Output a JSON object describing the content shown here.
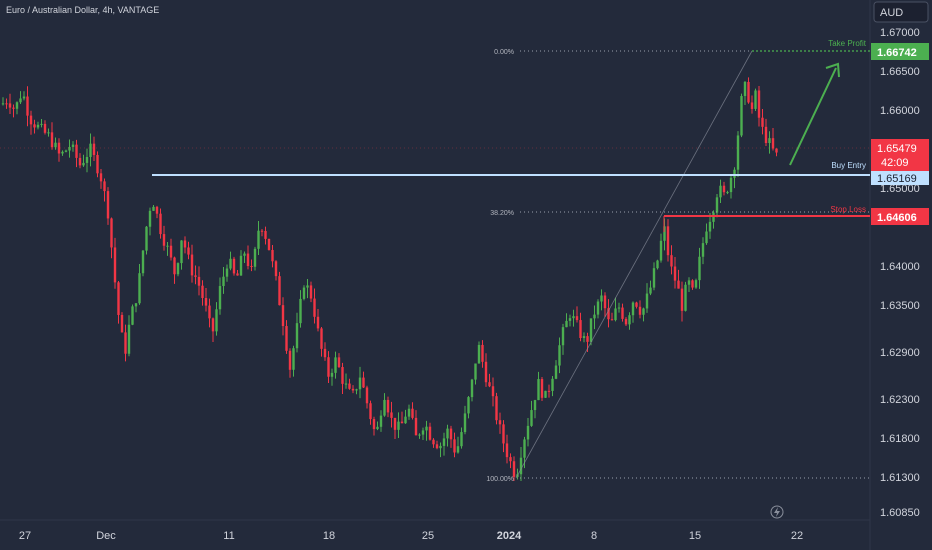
{
  "header": {
    "symbol_title": "Euro / Australian Dollar, 4h, VANTAGE"
  },
  "price_axis": {
    "currency_badge": "AUD",
    "ticks": [
      "1.67000",
      "1.66500",
      "1.66000",
      "1.65000",
      "1.64000",
      "1.63500",
      "1.62900",
      "1.62300",
      "1.61800",
      "1.61300",
      "1.60850"
    ],
    "tick_values": [
      1.67,
      1.665,
      1.66,
      1.65,
      1.64,
      1.635,
      1.629,
      1.623,
      1.618,
      1.613,
      1.6085
    ]
  },
  "time_axis": {
    "labels": [
      "27",
      "Dec",
      "11",
      "18",
      "25",
      "2024",
      "8",
      "15",
      "22"
    ]
  },
  "annotations": {
    "take_profit": {
      "label": "Take Profit",
      "price_label": "1.66742",
      "value": 1.66742,
      "color": "#4caf50"
    },
    "buy_entry": {
      "label": "Buy Entry",
      "price_label": "1.65169",
      "value": 1.65169,
      "color": "#bfe0ff"
    },
    "stop_loss": {
      "label": "Stop Loss",
      "price_label": "1.64606",
      "value": 1.64606,
      "color": "#f23645"
    },
    "current_price": {
      "price_label": "1.65479",
      "countdown": "42:09",
      "value": 1.65479,
      "color": "#f23645"
    },
    "fib_levels": [
      {
        "label": "0.00%",
        "value": 1.66742
      },
      {
        "label": "38.20%",
        "value": 1.6466
      },
      {
        "label": "100.00%",
        "value": 1.6131
      }
    ]
  },
  "colors": {
    "background": "#232a3b",
    "up": "#4caf50",
    "down": "#f23645",
    "axis_text": "#d1d4dc"
  },
  "chart_data": {
    "type": "candlestick",
    "title": "Euro / Australian Dollar, 4h, VANTAGE",
    "ylim": [
      1.6065,
      1.6725
    ],
    "y_scale": "linear",
    "grid": false,
    "path_points": [
      [
        0,
        1.6605
      ],
      [
        8,
        1.6615
      ],
      [
        15,
        1.66
      ],
      [
        22,
        1.6625
      ],
      [
        30,
        1.659
      ],
      [
        40,
        1.6575
      ],
      [
        50,
        1.6565
      ],
      [
        60,
        1.654
      ],
      [
        70,
        1.6555
      ],
      [
        80,
        1.653
      ],
      [
        90,
        1.655
      ],
      [
        100,
        1.652
      ],
      [
        108,
        1.647
      ],
      [
        115,
        1.638
      ],
      [
        120,
        1.632
      ],
      [
        125,
        1.629
      ],
      [
        130,
        1.633
      ],
      [
        138,
        1.637
      ],
      [
        145,
        1.644
      ],
      [
        152,
        1.649
      ],
      [
        160,
        1.645
      ],
      [
        168,
        1.642
      ],
      [
        175,
        1.639
      ],
      [
        182,
        1.644
      ],
      [
        190,
        1.64
      ],
      [
        198,
        1.638
      ],
      [
        205,
        1.635
      ],
      [
        212,
        1.631
      ],
      [
        220,
        1.637
      ],
      [
        228,
        1.641
      ],
      [
        236,
        1.638
      ],
      [
        244,
        1.642
      ],
      [
        252,
        1.639
      ],
      [
        260,
        1.646
      ],
      [
        268,
        1.643
      ],
      [
        276,
        1.638
      ],
      [
        283,
        1.633
      ],
      [
        290,
        1.627
      ],
      [
        297,
        1.632
      ],
      [
        304,
        1.638
      ],
      [
        312,
        1.636
      ],
      [
        320,
        1.63
      ],
      [
        328,
        1.626
      ],
      [
        336,
        1.628
      ],
      [
        344,
        1.625
      ],
      [
        352,
        1.623
      ],
      [
        360,
        1.626
      ],
      [
        368,
        1.622
      ],
      [
        376,
        1.618
      ],
      [
        384,
        1.624
      ],
      [
        392,
        1.62
      ],
      [
        400,
        1.619
      ],
      [
        408,
        1.622
      ],
      [
        416,
        1.618
      ],
      [
        424,
        1.62
      ],
      [
        432,
        1.618
      ],
      [
        440,
        1.617
      ],
      [
        448,
        1.619
      ],
      [
        456,
        1.616
      ],
      [
        464,
        1.62
      ],
      [
        472,
        1.625
      ],
      [
        478,
        1.63
      ],
      [
        486,
        1.626
      ],
      [
        494,
        1.622
      ],
      [
        502,
        1.618
      ],
      [
        510,
        1.615
      ],
      [
        516,
        1.6131
      ],
      [
        522,
        1.617
      ],
      [
        530,
        1.621
      ],
      [
        538,
        1.625
      ],
      [
        546,
        1.623
      ],
      [
        554,
        1.627
      ],
      [
        562,
        1.631
      ],
      [
        570,
        1.634
      ],
      [
        578,
        1.632
      ],
      [
        586,
        1.63
      ],
      [
        594,
        1.634
      ],
      [
        602,
        1.636
      ],
      [
        610,
        1.632
      ],
      [
        618,
        1.635
      ],
      [
        626,
        1.633
      ],
      [
        634,
        1.636
      ],
      [
        642,
        1.634
      ],
      [
        650,
        1.637
      ],
      [
        658,
        1.641
      ],
      [
        664,
        1.645
      ],
      [
        670,
        1.64
      ],
      [
        676,
        1.638
      ],
      [
        682,
        1.635
      ],
      [
        688,
        1.638
      ],
      [
        694,
        1.636
      ],
      [
        700,
        1.641
      ],
      [
        706,
        1.645
      ],
      [
        712,
        1.647
      ],
      [
        718,
        1.65
      ],
      [
        724,
        1.649
      ],
      [
        730,
        1.651
      ],
      [
        736,
        1.654
      ],
      [
        740,
        1.66
      ],
      [
        744,
        1.663
      ],
      [
        748,
        1.662
      ],
      [
        752,
        1.66
      ],
      [
        756,
        1.662
      ],
      [
        760,
        1.658
      ],
      [
        764,
        1.657
      ],
      [
        768,
        1.656
      ],
      [
        772,
        1.655
      ],
      [
        776,
        1.654
      ],
      [
        780,
        1.6548
      ]
    ]
  }
}
